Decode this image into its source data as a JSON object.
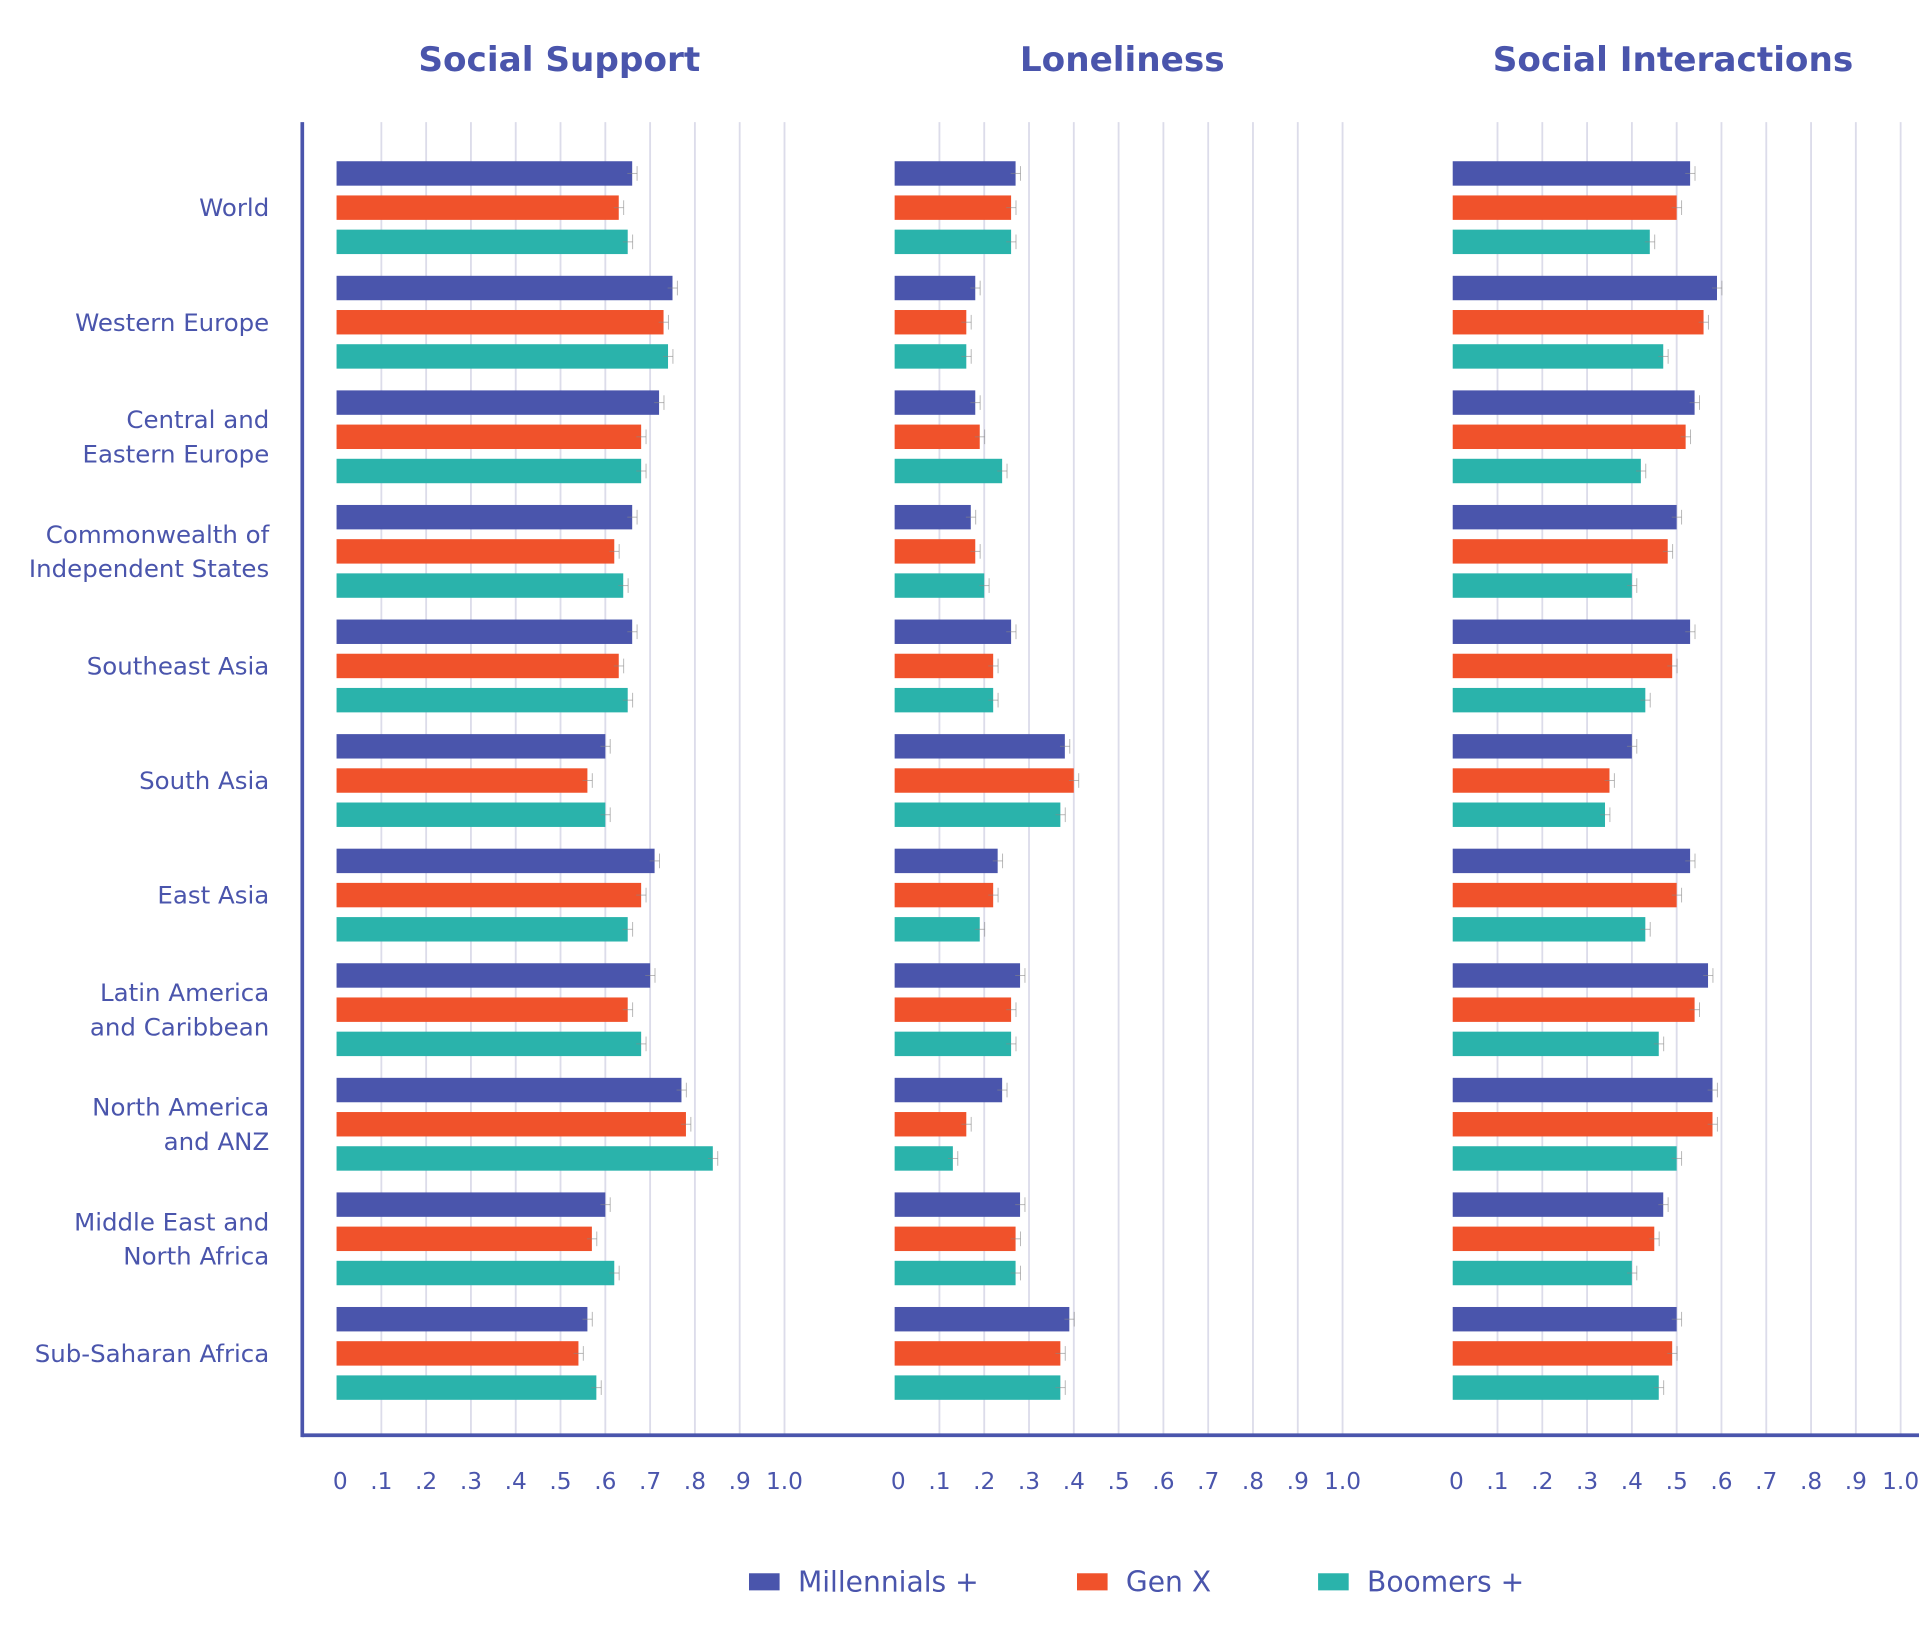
{
  "chart_data": [
    {
      "type": "bar",
      "orientation": "horizontal",
      "title": "Social Support",
      "xlim": [
        0,
        1.0
      ],
      "grid": true,
      "categories": [
        "World",
        "Western Europe",
        "Central and\nEastern Europe",
        "Commonwealth of\nIndependent States",
        "Southeast Asia",
        "South Asia",
        "East Asia",
        "Latin America\nand Caribbean",
        "North America\nand ANZ",
        "Middle East and\nNorth Africa",
        "Sub-Saharan Africa"
      ],
      "series": [
        {
          "name": "Millennials +",
          "values": [
            0.66,
            0.75,
            0.72,
            0.66,
            0.66,
            0.6,
            0.71,
            0.7,
            0.77,
            0.6,
            0.56
          ]
        },
        {
          "name": "Gen X",
          "values": [
            0.63,
            0.73,
            0.68,
            0.62,
            0.63,
            0.56,
            0.68,
            0.65,
            0.78,
            0.57,
            0.54
          ]
        },
        {
          "name": "Boomers +",
          "values": [
            0.65,
            0.74,
            0.68,
            0.64,
            0.65,
            0.6,
            0.65,
            0.68,
            0.84,
            0.62,
            0.58
          ]
        }
      ]
    },
    {
      "type": "bar",
      "orientation": "horizontal",
      "title": "Loneliness",
      "xlim": [
        0,
        1.0
      ],
      "grid": true,
      "series": [
        {
          "name": "Millennials +",
          "values": [
            0.27,
            0.18,
            0.18,
            0.17,
            0.26,
            0.38,
            0.23,
            0.28,
            0.24,
            0.28,
            0.39
          ]
        },
        {
          "name": "Gen X",
          "values": [
            0.26,
            0.16,
            0.19,
            0.18,
            0.22,
            0.4,
            0.22,
            0.26,
            0.16,
            0.27,
            0.37
          ]
        },
        {
          "name": "Boomers +",
          "values": [
            0.26,
            0.16,
            0.24,
            0.2,
            0.22,
            0.37,
            0.19,
            0.26,
            0.13,
            0.27,
            0.37
          ]
        }
      ]
    },
    {
      "type": "bar",
      "orientation": "horizontal",
      "title": "Social Interactions",
      "xlim": [
        0,
        1.0
      ],
      "grid": true,
      "series": [
        {
          "name": "Millennials +",
          "values": [
            0.53,
            0.59,
            0.54,
            0.5,
            0.53,
            0.4,
            0.53,
            0.57,
            0.58,
            0.47,
            0.5
          ]
        },
        {
          "name": "Gen X",
          "values": [
            0.5,
            0.56,
            0.52,
            0.48,
            0.49,
            0.35,
            0.5,
            0.54,
            0.58,
            0.45,
            0.49
          ]
        },
        {
          "name": "Boomers +",
          "values": [
            0.44,
            0.47,
            0.42,
            0.4,
            0.43,
            0.34,
            0.43,
            0.46,
            0.5,
            0.4,
            0.46
          ]
        }
      ]
    }
  ],
  "tick_labels": [
    "0",
    ".1",
    ".2",
    ".3",
    ".4",
    ".5",
    ".6",
    ".7",
    ".8",
    ".9",
    "1.0"
  ],
  "legend": {
    "placement": "bottom",
    "items": [
      "Millennials +",
      "Gen X",
      "Boomers +"
    ]
  },
  "colors": {
    "Millennials +": "#4a55ac",
    "Gen X": "#f0522b",
    "Boomers +": "#2ab3ab",
    "axis": "#4a55ac",
    "grid": "#dcdcea"
  }
}
